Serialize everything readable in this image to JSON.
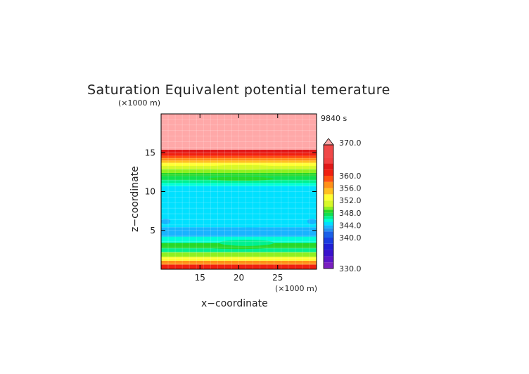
{
  "chart_data": {
    "type": "heatmap",
    "title": "Saturation Equivalent potential temerature",
    "time_label": "9840 s",
    "xlabel": "x−coordinate",
    "ylabel": "z−coordinate",
    "x_unit": "(×1000 m)",
    "y_unit": "(×1000 m)",
    "xlim": [
      10,
      30
    ],
    "ylim": [
      0,
      20
    ],
    "x_ticks": [
      15,
      20,
      25
    ],
    "y_ticks": [
      5,
      10,
      15
    ],
    "colorbar": {
      "min": 330,
      "max": 370,
      "tick_values": [
        370,
        360,
        356,
        352,
        348,
        344,
        340,
        330
      ],
      "tick_labels": [
        "370.0",
        "360.0",
        "356.0",
        "352.0",
        "348.0",
        "344.0",
        "340.0",
        "330.0"
      ],
      "levels": [
        {
          "lo": 330,
          "hi": 332,
          "color": "#7a1fc0"
        },
        {
          "lo": 332,
          "hi": 334,
          "color": "#5a16c8"
        },
        {
          "lo": 334,
          "hi": 336,
          "color": "#3a12cc"
        },
        {
          "lo": 336,
          "hi": 338,
          "color": "#2020d6"
        },
        {
          "lo": 338,
          "hi": 340,
          "color": "#1a3ce0"
        },
        {
          "lo": 340,
          "hi": 342,
          "color": "#1a60e8"
        },
        {
          "lo": 342,
          "hi": 343,
          "color": "#2690f0"
        },
        {
          "lo": 343,
          "hi": 344,
          "color": "#18b4ff"
        },
        {
          "lo": 344,
          "hi": 345,
          "color": "#00e0ff"
        },
        {
          "lo": 345,
          "hi": 346,
          "color": "#00ffd8"
        },
        {
          "lo": 346,
          "hi": 347,
          "color": "#00f090"
        },
        {
          "lo": 347,
          "hi": 348,
          "color": "#10e050"
        },
        {
          "lo": 348,
          "hi": 349,
          "color": "#28d828"
        },
        {
          "lo": 349,
          "hi": 350,
          "color": "#90f020"
        },
        {
          "lo": 350,
          "hi": 352,
          "color": "#d8f828"
        },
        {
          "lo": 352,
          "hi": 354,
          "color": "#ffff30"
        },
        {
          "lo": 354,
          "hi": 356,
          "color": "#ffc020"
        },
        {
          "lo": 356,
          "hi": 358,
          "color": "#ff9018"
        },
        {
          "lo": 358,
          "hi": 360,
          "color": "#ff5010"
        },
        {
          "lo": 360,
          "hi": 362,
          "color": "#f02010"
        },
        {
          "lo": 362,
          "hi": 364,
          "color": "#e01818"
        },
        {
          "lo": 364,
          "hi": 366,
          "color": "#f04040"
        },
        {
          "lo": 366,
          "hi": 370,
          "color": "#f04848"
        },
        {
          "lo": 370,
          "hi": 999,
          "color": "#ffa8a8"
        }
      ]
    },
    "background_bands": [
      {
        "z0": 0.0,
        "z1": 0.6,
        "value": 361
      },
      {
        "z0": 0.6,
        "z1": 1.1,
        "value": 357
      },
      {
        "z0": 1.1,
        "z1": 1.6,
        "value": 353
      },
      {
        "z0": 1.6,
        "z1": 2.2,
        "value": 349
      },
      {
        "z0": 2.2,
        "z1": 2.7,
        "value": 346
      },
      {
        "z0": 2.7,
        "z1": 3.4,
        "value": 348
      },
      {
        "z0": 3.4,
        "z1": 4.2,
        "value": 345
      },
      {
        "z0": 4.2,
        "z1": 5.4,
        "value": 343.5
      },
      {
        "z0": 5.4,
        "z1": 6.4,
        "value": 344.5
      },
      {
        "z0": 6.4,
        "z1": 10.7,
        "value": 344.5
      },
      {
        "z0": 10.7,
        "z1": 11.1,
        "value": 345.5
      },
      {
        "z0": 11.1,
        "z1": 11.5,
        "value": 346.5
      },
      {
        "z0": 11.5,
        "z1": 12.0,
        "value": 347.5
      },
      {
        "z0": 12.0,
        "z1": 12.4,
        "value": 348.5
      },
      {
        "z0": 12.4,
        "z1": 12.9,
        "value": 349.5
      },
      {
        "z0": 12.9,
        "z1": 13.3,
        "value": 351
      },
      {
        "z0": 13.3,
        "z1": 13.7,
        "value": 353
      },
      {
        "z0": 13.7,
        "z1": 14.0,
        "value": 355
      },
      {
        "z0": 14.0,
        "z1": 14.3,
        "value": 357
      },
      {
        "z0": 14.3,
        "z1": 14.6,
        "value": 359
      },
      {
        "z0": 14.6,
        "z1": 15.0,
        "value": 361
      },
      {
        "z0": 15.0,
        "z1": 15.4,
        "value": 363
      },
      {
        "z0": 15.4,
        "z1": 20.0,
        "value": 371
      }
    ],
    "features": [
      {
        "x0": 16.5,
        "x1": 26.5,
        "z0": 4.3,
        "z1": 5.4,
        "value": 343.5
      },
      {
        "x0": 17.0,
        "x1": 26.0,
        "z0": 5.4,
        "z1": 6.4,
        "value": 344.5
      },
      {
        "x0": 15.0,
        "x1": 25.0,
        "z0": 2.6,
        "z1": 3.4,
        "value": 348
      },
      {
        "x0": 17.5,
        "x1": 24.5,
        "z0": 3.0,
        "z1": 3.8,
        "value": 346
      },
      {
        "x0": 10.0,
        "x1": 11.2,
        "z0": 5.8,
        "z1": 6.5,
        "value": 343.5
      },
      {
        "x0": 28.8,
        "x1": 30.0,
        "z0": 5.8,
        "z1": 6.5,
        "value": 343.5
      },
      {
        "x0": 15.5,
        "x1": 25.5,
        "z0": 12.8,
        "z1": 13.4,
        "value": 351
      },
      {
        "x0": 16.0,
        "x1": 24.5,
        "z0": 11.4,
        "z1": 11.9,
        "value": 348
      }
    ]
  }
}
